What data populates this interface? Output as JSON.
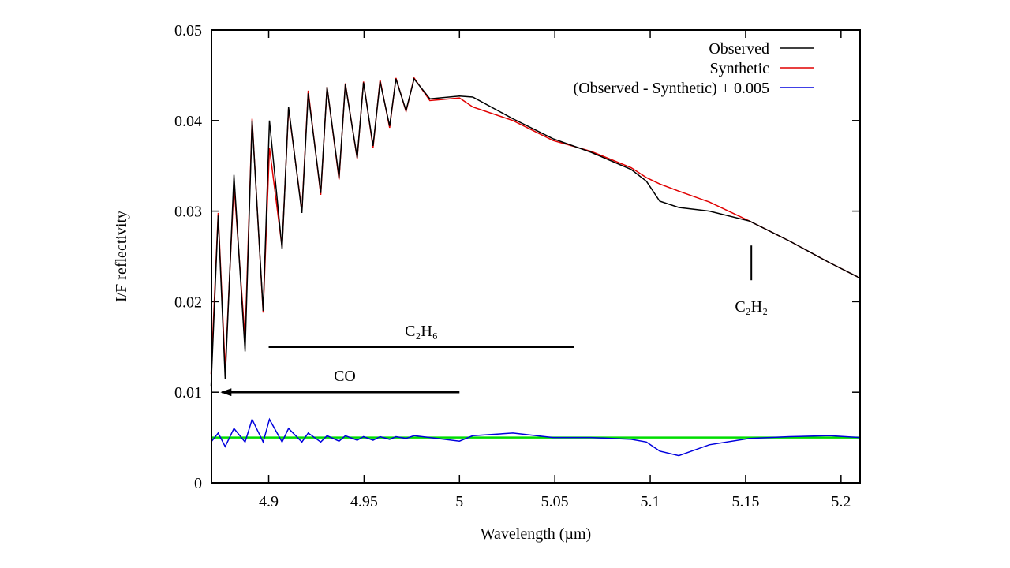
{
  "chart_data": {
    "type": "line",
    "x_label": "Wavelength (µm)",
    "y_label": "I/F reflectivity",
    "xlim": [
      4.87,
      5.21
    ],
    "ylim": [
      0,
      0.05
    ],
    "xticks": [
      4.9,
      4.95,
      5,
      5.05,
      5.1,
      5.15,
      5.2
    ],
    "yticks": [
      0,
      0.01,
      0.02,
      0.03,
      0.04,
      0.05
    ],
    "legend": "top-right",
    "x": [
      4.8698,
      4.8735,
      4.8772,
      4.8818,
      4.8876,
      4.8913,
      4.8971,
      4.9004,
      4.907,
      4.9104,
      4.9174,
      4.9207,
      4.9273,
      4.9306,
      4.9369,
      4.9402,
      4.9464,
      4.9497,
      4.9547,
      4.9584,
      4.9634,
      4.9667,
      4.972,
      4.9762,
      4.9845,
      5.0,
      5.007,
      5.028,
      5.049,
      5.069,
      5.09,
      5.098,
      5.105,
      5.115,
      5.131,
      5.152,
      5.173,
      5.194,
      5.21
    ],
    "series": [
      {
        "name": "Observed",
        "color": "#000000",
        "values": [
          0.0107,
          0.0295,
          0.0115,
          0.034,
          0.0145,
          0.04,
          0.019,
          0.04,
          0.0258,
          0.0415,
          0.0298,
          0.043,
          0.032,
          0.0437,
          0.0337,
          0.044,
          0.0359,
          0.0442,
          0.0372,
          0.0443,
          0.0394,
          0.0446,
          0.0411,
          0.0446,
          0.0424,
          0.0427,
          0.0426,
          0.0402,
          0.038,
          0.0365,
          0.0346,
          0.0333,
          0.0311,
          0.0304,
          0.03,
          0.0289,
          0.0267,
          0.0243,
          0.0226
        ]
      },
      {
        "name": "Synthetic",
        "color": "#e00000",
        "values": [
          0.012,
          0.0298,
          0.0125,
          0.033,
          0.0158,
          0.0402,
          0.0188,
          0.037,
          0.026,
          0.0413,
          0.03,
          0.0433,
          0.0318,
          0.0437,
          0.0335,
          0.0441,
          0.0358,
          0.0443,
          0.037,
          0.0445,
          0.0392,
          0.0447,
          0.041,
          0.0447,
          0.0422,
          0.0425,
          0.0415,
          0.04,
          0.0378,
          0.0366,
          0.0348,
          0.0337,
          0.033,
          0.0322,
          0.031,
          0.0289,
          0.0267,
          0.0243,
          0.0226
        ]
      },
      {
        "name": "(Observed - Synthetic) + 0.005",
        "color": "#0000dd",
        "values": [
          0.0045,
          0.0055,
          0.004,
          0.006,
          0.0045,
          0.007,
          0.0045,
          0.007,
          0.0045,
          0.006,
          0.0045,
          0.0055,
          0.0045,
          0.0052,
          0.0046,
          0.0052,
          0.0047,
          0.0051,
          0.0047,
          0.0051,
          0.0048,
          0.0051,
          0.0049,
          0.0052,
          0.005,
          0.0046,
          0.0052,
          0.0055,
          0.005,
          0.005,
          0.0048,
          0.0045,
          0.0035,
          0.003,
          0.0042,
          0.0049,
          0.0051,
          0.0052,
          0.005
        ]
      }
    ],
    "reference_line": {
      "value": 0.005,
      "color": "#00dd00"
    },
    "annotations": [
      {
        "text": "C₂H₆",
        "x": [
          4.9,
          5.06
        ],
        "y": 0.015
      },
      {
        "text": "CO",
        "x": [
          5.0,
          4.8755
        ],
        "y": 0.01
      },
      {
        "text": "C₂H₂",
        "x": [
          5.153,
          5.153
        ],
        "y": 0.0262
      }
    ]
  }
}
